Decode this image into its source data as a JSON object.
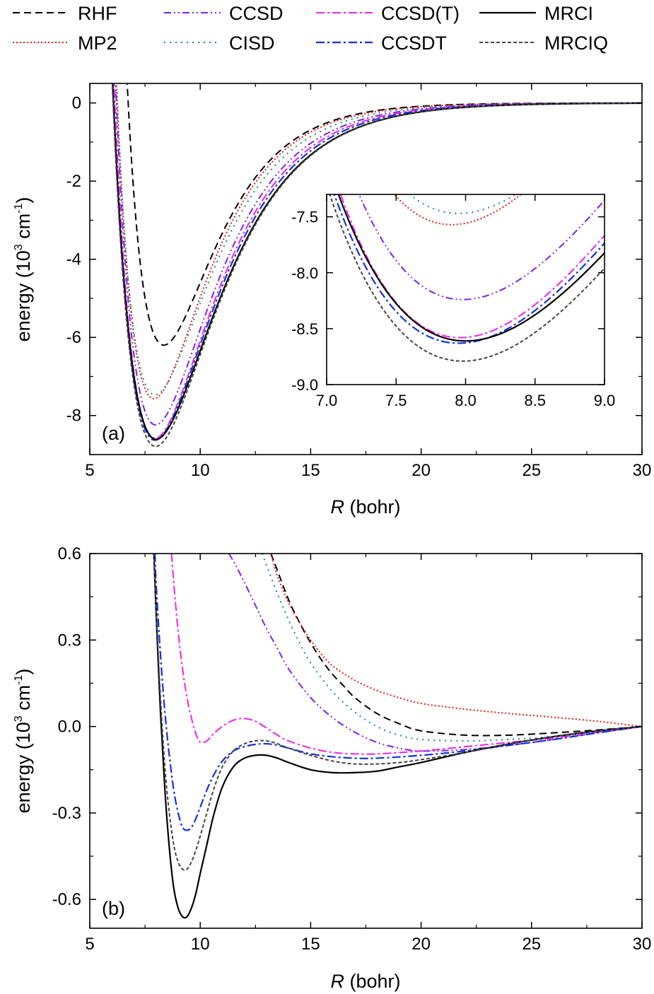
{
  "legend": [
    {
      "name": "RHF",
      "color": "#000000",
      "dash": "10 6",
      "width": 2
    },
    {
      "name": "MP2",
      "color": "#e31a1c",
      "dash": "2 3",
      "width": 2
    },
    {
      "name": "CCSD",
      "color": "#7b22ee",
      "dash": "10 4 2 4 2 4",
      "width": 2
    },
    {
      "name": "CISD",
      "color": "#138a8a",
      "dash": "2 6",
      "width": 2
    },
    {
      "name": "CCSD(T)",
      "color": "#ee22ee",
      "dash": "12 4 3 4",
      "width": 2
    },
    {
      "name": "CCSDT",
      "color": "#1530dd",
      "dash": "12 4 3 4",
      "width": 2.2
    },
    {
      "name": "MRCI",
      "color": "#000000",
      "dash": "",
      "width": 2.2
    },
    {
      "name": "MRCIQ",
      "color": "#444444",
      "dash": "5 3",
      "width": 2
    }
  ],
  "chart_data": [
    {
      "type": "line",
      "panel_label": "(a)",
      "xlabel_italic": "R",
      "xlabel_rest": " (bohr)",
      "ylabel_main": "energy (10",
      "ylabel_sup1": "3",
      "ylabel_mid": " cm",
      "ylabel_sup2": "-1",
      "ylabel_end": ")",
      "xlim": [
        5,
        30
      ],
      "ylim": [
        -9,
        0.5
      ],
      "xticks": [
        5,
        10,
        15,
        20,
        25,
        30
      ],
      "xtick_labels": [
        "5",
        "10",
        "15",
        "20",
        "25",
        "30"
      ],
      "yticks": [
        -8,
        -6,
        -4,
        -2,
        0
      ],
      "ytick_labels": [
        "-8",
        "-6",
        "-4",
        "-2",
        "0"
      ],
      "curve_model": "morse",
      "series": [
        {
          "name": "RHF",
          "De": 6.2,
          "Re": 8.35,
          "a": 0.43
        },
        {
          "name": "MP2",
          "De": 7.57,
          "Re": 7.9,
          "a": 0.42
        },
        {
          "name": "CCSD",
          "De": 8.24,
          "Re": 7.98,
          "a": 0.39
        },
        {
          "name": "CISD",
          "De": 7.47,
          "Re": 7.95,
          "a": 0.4
        },
        {
          "name": "CCSD(T)",
          "De": 8.58,
          "Re": 7.96,
          "a": 0.38
        },
        {
          "name": "CCSDT",
          "De": 8.63,
          "Re": 7.95,
          "a": 0.37
        },
        {
          "name": "MRCI",
          "De": 8.61,
          "Re": 8.0,
          "a": 0.36
        },
        {
          "name": "MRCIQ",
          "De": 8.79,
          "Re": 7.98,
          "a": 0.36
        }
      ]
    },
    {
      "type": "line",
      "role": "inset",
      "xlim": [
        7.0,
        9.0
      ],
      "ylim": [
        -9.0,
        -7.3
      ],
      "xticks": [
        7.0,
        7.5,
        8.0,
        8.5,
        9.0
      ],
      "xtick_labels": [
        "7.0",
        "7.5",
        "8.0",
        "8.5",
        "9.0"
      ],
      "yticks": [
        -9.0,
        -8.5,
        -8.0,
        -7.5
      ],
      "ytick_labels": [
        "-9.0",
        "-8.5",
        "-8.0",
        "-7.5"
      ],
      "curve_model": "morse",
      "note": "zoom of panel (a), same curves"
    },
    {
      "type": "line",
      "panel_label": "(b)",
      "xlabel_italic": "R",
      "xlabel_rest": " (bohr)",
      "ylabel_main": "energy (10",
      "ylabel_sup1": "3",
      "ylabel_mid": " cm",
      "ylabel_sup2": "-1",
      "ylabel_end": ")",
      "xlim": [
        5,
        30
      ],
      "ylim": [
        -0.7,
        0.6
      ],
      "xticks": [
        5,
        10,
        15,
        20,
        25,
        30
      ],
      "xtick_labels": [
        "5",
        "10",
        "15",
        "20",
        "25",
        "30"
      ],
      "yticks": [
        -0.6,
        -0.3,
        0.0,
        0.3,
        0.6
      ],
      "ytick_labels": [
        "-0.6",
        "-0.3",
        "0.0",
        "0.3",
        "0.6"
      ],
      "series": [
        {
          "name": "RHF",
          "x": [
            13.2,
            13.5,
            14,
            14.5,
            15,
            15.5,
            16,
            16.5,
            17,
            18,
            19,
            20,
            22,
            24,
            26,
            28,
            30
          ],
          "y": [
            0.6,
            0.54,
            0.44,
            0.36,
            0.29,
            0.23,
            0.18,
            0.14,
            0.1,
            0.045,
            0.01,
            -0.015,
            -0.03,
            -0.03,
            -0.022,
            -0.012,
            0.0
          ]
        },
        {
          "name": "MP2",
          "x": [
            13.2,
            13.5,
            14,
            14.5,
            15,
            15.5,
            16,
            17,
            18,
            19,
            20,
            22,
            24,
            26,
            28,
            30
          ],
          "y": [
            0.6,
            0.52,
            0.43,
            0.36,
            0.3,
            0.25,
            0.21,
            0.16,
            0.125,
            0.1,
            0.08,
            0.06,
            0.045,
            0.032,
            0.018,
            0.0
          ]
        },
        {
          "name": "CCSD",
          "x": [
            11.3,
            11.6,
            12,
            12.5,
            13,
            13.5,
            14,
            15,
            16,
            17,
            18,
            19,
            20,
            22,
            24,
            26,
            28,
            30
          ],
          "y": [
            0.6,
            0.56,
            0.5,
            0.42,
            0.34,
            0.27,
            0.2,
            0.1,
            0.03,
            -0.02,
            -0.055,
            -0.075,
            -0.085,
            -0.08,
            -0.065,
            -0.045,
            -0.022,
            0.0
          ]
        },
        {
          "name": "CISD",
          "x": [
            12.8,
            13,
            13.5,
            14,
            14.5,
            15,
            16,
            17,
            18,
            19,
            20,
            22,
            24,
            26,
            28,
            30
          ],
          "y": [
            0.6,
            0.56,
            0.46,
            0.37,
            0.29,
            0.22,
            0.12,
            0.05,
            0.0,
            -0.03,
            -0.045,
            -0.05,
            -0.045,
            -0.035,
            -0.02,
            0.0
          ]
        },
        {
          "name": "CCSD(T)",
          "x": [
            8.7,
            8.8,
            9.0,
            9.2,
            9.4,
            9.6,
            9.8,
            10.0,
            10.3,
            10.6,
            11.0,
            11.5,
            12.0,
            12.5,
            13.0,
            13.5,
            14,
            15,
            16,
            17,
            18,
            20,
            22,
            24,
            26,
            28,
            30
          ],
          "y": [
            0.6,
            0.5,
            0.33,
            0.2,
            0.1,
            0.03,
            -0.025,
            -0.055,
            -0.05,
            -0.025,
            0.0,
            0.022,
            0.028,
            0.018,
            -0.005,
            -0.03,
            -0.05,
            -0.075,
            -0.09,
            -0.095,
            -0.095,
            -0.085,
            -0.07,
            -0.055,
            -0.04,
            -0.02,
            0.0
          ]
        },
        {
          "name": "CCSDT",
          "x": [
            7.95,
            8.0,
            8.2,
            8.4,
            8.6,
            8.8,
            9.0,
            9.2,
            9.4,
            9.6,
            9.8,
            10.0,
            10.3,
            10.6,
            11.0,
            11.5,
            12.0,
            12.5,
            13.0,
            13.5,
            14,
            15,
            16,
            17,
            18,
            20,
            22,
            24,
            26,
            28,
            30
          ],
          "y": [
            0.6,
            0.5,
            0.25,
            0.05,
            -0.1,
            -0.22,
            -0.3,
            -0.35,
            -0.36,
            -0.35,
            -0.32,
            -0.28,
            -0.22,
            -0.17,
            -0.12,
            -0.085,
            -0.07,
            -0.062,
            -0.06,
            -0.065,
            -0.075,
            -0.095,
            -0.105,
            -0.11,
            -0.11,
            -0.1,
            -0.085,
            -0.065,
            -0.045,
            -0.022,
            0.0
          ]
        },
        {
          "name": "MRCI",
          "x": [
            7.9,
            8.0,
            8.2,
            8.4,
            8.6,
            8.8,
            9.0,
            9.2,
            9.4,
            9.6,
            9.8,
            10.0,
            10.3,
            10.6,
            11.0,
            11.5,
            12.0,
            12.5,
            13.0,
            13.5,
            14,
            15,
            16,
            17,
            18,
            19,
            20,
            22,
            24,
            26,
            28,
            30
          ],
          "y": [
            0.6,
            0.4,
            0.05,
            -0.22,
            -0.42,
            -0.56,
            -0.63,
            -0.66,
            -0.66,
            -0.63,
            -0.58,
            -0.51,
            -0.41,
            -0.31,
            -0.21,
            -0.14,
            -0.11,
            -0.1,
            -0.1,
            -0.11,
            -0.125,
            -0.15,
            -0.16,
            -0.16,
            -0.155,
            -0.14,
            -0.125,
            -0.09,
            -0.06,
            -0.035,
            -0.015,
            0.0
          ]
        },
        {
          "name": "MRCIQ",
          "x": [
            7.9,
            8.0,
            8.2,
            8.4,
            8.6,
            8.8,
            9.0,
            9.2,
            9.4,
            9.6,
            9.8,
            10.0,
            10.3,
            10.6,
            11.0,
            11.5,
            12.0,
            12.5,
            13.0,
            13.5,
            14,
            15,
            16,
            17,
            18,
            19,
            20,
            22,
            24,
            26,
            28,
            30
          ],
          "y": [
            0.6,
            0.42,
            0.1,
            -0.14,
            -0.3,
            -0.41,
            -0.47,
            -0.495,
            -0.495,
            -0.47,
            -0.43,
            -0.38,
            -0.3,
            -0.22,
            -0.14,
            -0.085,
            -0.06,
            -0.05,
            -0.05,
            -0.06,
            -0.075,
            -0.1,
            -0.12,
            -0.13,
            -0.13,
            -0.125,
            -0.115,
            -0.09,
            -0.06,
            -0.035,
            -0.015,
            0.0
          ]
        }
      ]
    }
  ]
}
